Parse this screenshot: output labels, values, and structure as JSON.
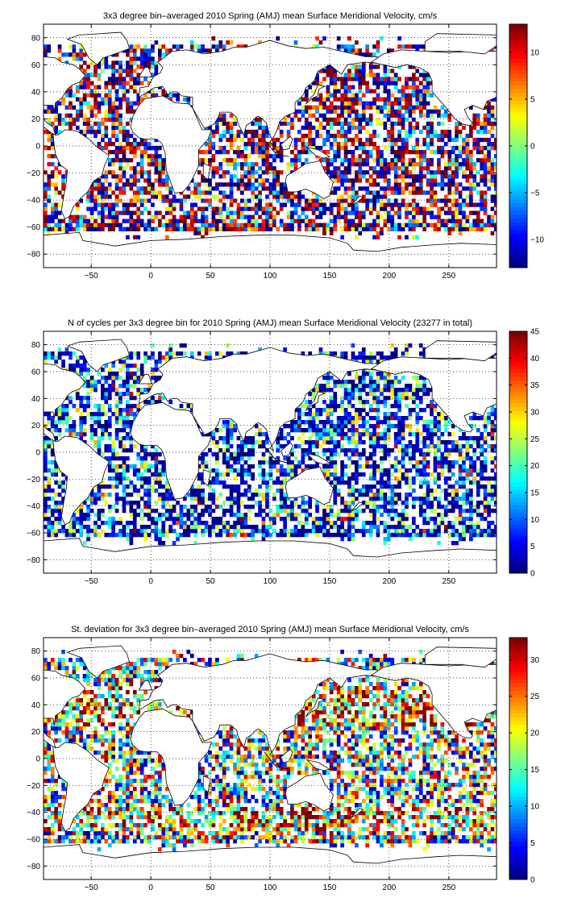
{
  "chart_data": [
    {
      "type": "heatmap",
      "title": "3x3 degree bin–averaged 2010 Spring (AMJ) mean Surface Meridional Velocity, cm/s",
      "xlim": [
        -90,
        290
      ],
      "ylim": [
        -90,
        90
      ],
      "x_ticks": [
        -50,
        0,
        50,
        100,
        150,
        200,
        250
      ],
      "y_ticks": [
        80,
        60,
        40,
        20,
        0,
        -20,
        -40,
        -60,
        -80
      ],
      "grid": true,
      "grid_style": "dotted",
      "colormap": "jet",
      "colorbar": {
        "min": -13,
        "max": 13,
        "ticks": [
          10,
          5,
          0,
          -5,
          -10
        ],
        "tick_labels": [
          "10",
          "5",
          "0",
          "−5",
          "−10"
        ]
      },
      "bin_size_deg": 3,
      "value_range": [
        -13,
        13
      ],
      "distribution": "signed"
    },
    {
      "type": "heatmap",
      "title": "N of cycles per 3x3 degree bin for 2010 Spring (AMJ) mean Surface Meridional Velocity (23277 in total)",
      "xlim": [
        -90,
        290
      ],
      "ylim": [
        -90,
        90
      ],
      "x_ticks": [
        -50,
        0,
        50,
        100,
        150,
        200,
        250
      ],
      "y_ticks": [
        80,
        60,
        40,
        20,
        0,
        -20,
        -40,
        -60,
        -80
      ],
      "grid": true,
      "grid_style": "dotted",
      "colormap": "jet",
      "colorbar": {
        "min": 0,
        "max": 45,
        "ticks": [
          45,
          40,
          35,
          30,
          25,
          20,
          15,
          10,
          5,
          0
        ],
        "tick_labels": [
          "45",
          "40",
          "35",
          "30",
          "25",
          "20",
          "15",
          "10",
          "5",
          "0"
        ]
      },
      "bin_size_deg": 3,
      "value_range": [
        0,
        45
      ],
      "distribution": "low-count",
      "total_count": 23277
    },
    {
      "type": "heatmap",
      "title": "St. deviation for 3x3 degree bin–averaged 2010 Spring (AMJ) mean Surface Meridional Velocity, cm/s",
      "xlim": [
        -90,
        290
      ],
      "ylim": [
        -90,
        90
      ],
      "x_ticks": [
        -50,
        0,
        50,
        100,
        150,
        200,
        250
      ],
      "y_ticks": [
        80,
        60,
        40,
        20,
        0,
        -20,
        -40,
        -60,
        -80
      ],
      "grid": true,
      "grid_style": "dotted",
      "colormap": "jet",
      "colorbar": {
        "min": 0,
        "max": 33,
        "ticks": [
          30,
          25,
          20,
          15,
          10,
          5,
          0
        ],
        "tick_labels": [
          "30",
          "25",
          "20",
          "15",
          "10",
          "5",
          "0"
        ]
      },
      "bin_size_deg": 3,
      "value_range": [
        0,
        33
      ],
      "distribution": "spread"
    }
  ]
}
